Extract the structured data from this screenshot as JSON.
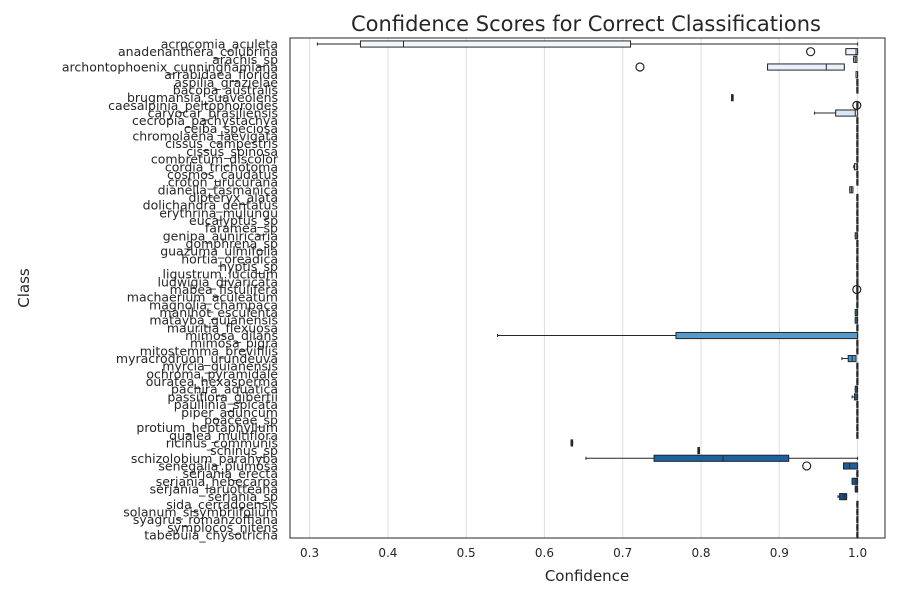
{
  "chart_data": {
    "type": "boxplot",
    "orientation": "horizontal",
    "title": "Confidence Scores for Correct Classifications",
    "xlabel": "Confidence",
    "ylabel": "Class",
    "xlim": [
      0.275,
      1.035
    ],
    "xticks": [
      "0.3",
      "0.4",
      "0.5",
      "0.6",
      "0.7",
      "0.8",
      "0.9",
      "1.0"
    ],
    "grid": "vertical",
    "palette": "Blues",
    "colors": {
      "box_edge": "#262626",
      "grid": "#dddddd",
      "spine": "#262626"
    },
    "classes": [
      {
        "name": "acrocomia_aculeta",
        "q1": 0.365,
        "median": 0.42,
        "q3": 0.71,
        "whisker_low": 0.31,
        "whisker_high": 1.0,
        "outliers": []
      },
      {
        "name": "anadenanthera_colubrina",
        "q1": 0.985,
        "median": 0.998,
        "q3": 1.0,
        "whisker_low": 0.985,
        "whisker_high": 1.0,
        "outliers": [
          0.94
        ]
      },
      {
        "name": "arachis_sp",
        "q1": 0.995,
        "median": 0.997,
        "q3": 0.999,
        "whisker_low": 0.995,
        "whisker_high": 0.999,
        "outliers": []
      },
      {
        "name": "archontophoenix_cunninghamiana",
        "q1": 0.885,
        "median": 0.96,
        "q3": 0.983,
        "whisker_low": 0.885,
        "whisker_high": 0.983,
        "outliers": [
          0.722
        ]
      },
      {
        "name": "arrabidaea_florida",
        "q1": 0.998,
        "median": 1.0,
        "q3": 1.0,
        "whisker_low": 0.998,
        "whisker_high": 1.0,
        "outliers": []
      },
      {
        "name": "aspilia_grazielae",
        "q1": 0.999,
        "median": 1.0,
        "q3": 1.0,
        "whisker_low": 0.999,
        "whisker_high": 1.0,
        "outliers": []
      },
      {
        "name": "bacopa_australis",
        "q1": 0.999,
        "median": 1.0,
        "q3": 1.0,
        "whisker_low": 0.999,
        "whisker_high": 1.0,
        "outliers": []
      },
      {
        "name": "brugmansia_suaveolens",
        "q1": 0.839,
        "median": 0.84,
        "q3": 0.841,
        "whisker_low": 0.839,
        "whisker_high": 0.841,
        "outliers": []
      },
      {
        "name": "caesalpinia_peltophoroides",
        "q1": 0.999,
        "median": 1.0,
        "q3": 1.0,
        "whisker_low": 0.999,
        "whisker_high": 1.0,
        "outliers": [
          0.999
        ]
      },
      {
        "name": "caryocar_brasiliensis",
        "q1": 0.972,
        "median": 0.997,
        "q3": 1.0,
        "whisker_low": 0.945,
        "whisker_high": 1.0,
        "outliers": []
      },
      {
        "name": "cecropia_pachystachya",
        "q1": 0.999,
        "median": 1.0,
        "q3": 1.0,
        "whisker_low": 0.999,
        "whisker_high": 1.0,
        "outliers": []
      },
      {
        "name": "ceiba_speciosa",
        "q1": 0.999,
        "median": 1.0,
        "q3": 1.0,
        "whisker_low": 0.999,
        "whisker_high": 1.0,
        "outliers": []
      },
      {
        "name": "chromolaena_laevigata",
        "q1": 0.999,
        "median": 1.0,
        "q3": 1.0,
        "whisker_low": 0.999,
        "whisker_high": 1.0,
        "outliers": []
      },
      {
        "name": "cissus_campestris",
        "q1": 0.999,
        "median": 1.0,
        "q3": 1.0,
        "whisker_low": 0.999,
        "whisker_high": 1.0,
        "outliers": []
      },
      {
        "name": "cissus_spinosa",
        "q1": 0.999,
        "median": 1.0,
        "q3": 1.0,
        "whisker_low": 0.999,
        "whisker_high": 1.0,
        "outliers": []
      },
      {
        "name": "combretum_discolor",
        "q1": 0.999,
        "median": 1.0,
        "q3": 1.0,
        "whisker_low": 0.999,
        "whisker_high": 1.0,
        "outliers": []
      },
      {
        "name": "cordia_trichotoma",
        "q1": 0.996,
        "median": 0.999,
        "q3": 1.0,
        "whisker_low": 0.995,
        "whisker_high": 1.0,
        "outliers": []
      },
      {
        "name": "cosmos_caudatus",
        "q1": 0.999,
        "median": 1.0,
        "q3": 1.0,
        "whisker_low": 0.999,
        "whisker_high": 1.0,
        "outliers": []
      },
      {
        "name": "croton_urucurana",
        "q1": 0.999,
        "median": 1.0,
        "q3": 1.0,
        "whisker_low": 0.999,
        "whisker_high": 1.0,
        "outliers": []
      },
      {
        "name": "dianella_tasmanica",
        "q1": 0.99,
        "median": 0.992,
        "q3": 0.994,
        "whisker_low": 0.99,
        "whisker_high": 0.994,
        "outliers": []
      },
      {
        "name": "dipteryx_alata",
        "q1": 0.999,
        "median": 1.0,
        "q3": 1.0,
        "whisker_low": 0.999,
        "whisker_high": 1.0,
        "outliers": []
      },
      {
        "name": "dolichandra_dentatus",
        "q1": 0.999,
        "median": 1.0,
        "q3": 1.0,
        "whisker_low": 0.999,
        "whisker_high": 1.0,
        "outliers": []
      },
      {
        "name": "erythrina_mulungu",
        "q1": 0.999,
        "median": 1.0,
        "q3": 1.0,
        "whisker_low": 0.999,
        "whisker_high": 1.0,
        "outliers": []
      },
      {
        "name": "eucalyptus_sp",
        "q1": 0.999,
        "median": 1.0,
        "q3": 1.0,
        "whisker_low": 0.999,
        "whisker_high": 1.0,
        "outliers": []
      },
      {
        "name": "faramea_sp",
        "q1": 0.999,
        "median": 1.0,
        "q3": 1.0,
        "whisker_low": 0.999,
        "whisker_high": 1.0,
        "outliers": []
      },
      {
        "name": "genipa_auniricaria",
        "q1": 0.997,
        "median": 0.999,
        "q3": 1.0,
        "whisker_low": 0.997,
        "whisker_high": 1.0,
        "outliers": []
      },
      {
        "name": "gomphrena_sp",
        "q1": 0.999,
        "median": 1.0,
        "q3": 1.0,
        "whisker_low": 0.999,
        "whisker_high": 1.0,
        "outliers": []
      },
      {
        "name": "guazuma_ulmifolia",
        "q1": 0.999,
        "median": 1.0,
        "q3": 1.0,
        "whisker_low": 0.999,
        "whisker_high": 1.0,
        "outliers": []
      },
      {
        "name": "hortia_oreadica",
        "q1": 0.999,
        "median": 1.0,
        "q3": 1.0,
        "whisker_low": 0.999,
        "whisker_high": 1.0,
        "outliers": []
      },
      {
        "name": "hyptis_sp",
        "q1": 0.999,
        "median": 1.0,
        "q3": 1.0,
        "whisker_low": 0.999,
        "whisker_high": 1.0,
        "outliers": []
      },
      {
        "name": "ligustrum_lucidum",
        "q1": 0.999,
        "median": 1.0,
        "q3": 1.0,
        "whisker_low": 0.999,
        "whisker_high": 1.0,
        "outliers": []
      },
      {
        "name": "ludwigia_divaricata",
        "q1": 0.999,
        "median": 1.0,
        "q3": 1.0,
        "whisker_low": 0.999,
        "whisker_high": 1.0,
        "outliers": []
      },
      {
        "name": "mabea_fistulifera",
        "q1": 0.999,
        "median": 1.0,
        "q3": 1.0,
        "whisker_low": 0.999,
        "whisker_high": 1.0,
        "outliers": [
          0.999
        ]
      },
      {
        "name": "machaerium_aculeatum",
        "q1": 0.999,
        "median": 1.0,
        "q3": 1.0,
        "whisker_low": 0.999,
        "whisker_high": 1.0,
        "outliers": []
      },
      {
        "name": "magnolia_champaca",
        "q1": 0.999,
        "median": 1.0,
        "q3": 1.0,
        "whisker_low": 0.999,
        "whisker_high": 1.0,
        "outliers": []
      },
      {
        "name": "manihot_esculenta",
        "q1": 0.997,
        "median": 0.999,
        "q3": 1.0,
        "whisker_low": 0.997,
        "whisker_high": 1.0,
        "outliers": []
      },
      {
        "name": "matayba_guianensis",
        "q1": 0.997,
        "median": 0.999,
        "q3": 1.0,
        "whisker_low": 0.997,
        "whisker_high": 1.0,
        "outliers": []
      },
      {
        "name": "mauritia_flexuosa",
        "q1": 0.999,
        "median": 1.0,
        "q3": 1.0,
        "whisker_low": 0.999,
        "whisker_high": 1.0,
        "outliers": []
      },
      {
        "name": "mimosa_dilans",
        "q1": 0.768,
        "median": 1.0,
        "q3": 1.0,
        "whisker_low": 0.54,
        "whisker_high": 1.0,
        "outliers": []
      },
      {
        "name": "mimosa_pigra",
        "q1": 0.999,
        "median": 1.0,
        "q3": 1.0,
        "whisker_low": 0.999,
        "whisker_high": 1.0,
        "outliers": []
      },
      {
        "name": "mitostemma_brevifilis",
        "q1": 0.999,
        "median": 1.0,
        "q3": 1.0,
        "whisker_low": 0.999,
        "whisker_high": 1.0,
        "outliers": []
      },
      {
        "name": "myracrodruon_urundeuva",
        "q1": 0.988,
        "median": 0.993,
        "q3": 0.998,
        "whisker_low": 0.98,
        "whisker_high": 0.998,
        "outliers": []
      },
      {
        "name": "myrcia_guianensis",
        "q1": 0.999,
        "median": 1.0,
        "q3": 1.0,
        "whisker_low": 0.999,
        "whisker_high": 1.0,
        "outliers": []
      },
      {
        "name": "ochroma_pyramidale",
        "q1": 0.999,
        "median": 1.0,
        "q3": 1.0,
        "whisker_low": 0.999,
        "whisker_high": 1.0,
        "outliers": []
      },
      {
        "name": "ouratea_hexasperma",
        "q1": 0.999,
        "median": 1.0,
        "q3": 1.0,
        "whisker_low": 0.999,
        "whisker_high": 1.0,
        "outliers": []
      },
      {
        "name": "pachira_aquatica",
        "q1": 0.997,
        "median": 0.999,
        "q3": 1.0,
        "whisker_low": 0.997,
        "whisker_high": 1.0,
        "outliers": []
      },
      {
        "name": "passiflora_gibertii",
        "q1": 0.996,
        "median": 0.998,
        "q3": 1.0,
        "whisker_low": 0.993,
        "whisker_high": 1.0,
        "outliers": []
      },
      {
        "name": "paullinia_spicata",
        "q1": 0.999,
        "median": 1.0,
        "q3": 1.0,
        "whisker_low": 0.999,
        "whisker_high": 1.0,
        "outliers": []
      },
      {
        "name": "piper_aduncum",
        "q1": 0.999,
        "median": 1.0,
        "q3": 1.0,
        "whisker_low": 0.999,
        "whisker_high": 1.0,
        "outliers": []
      },
      {
        "name": "poaceae_sp",
        "q1": 0.999,
        "median": 1.0,
        "q3": 1.0,
        "whisker_low": 0.999,
        "whisker_high": 1.0,
        "outliers": []
      },
      {
        "name": "protium_heptaphyllum",
        "q1": 0.999,
        "median": 1.0,
        "q3": 1.0,
        "whisker_low": 0.999,
        "whisker_high": 1.0,
        "outliers": []
      },
      {
        "name": "qualea_multiflora",
        "q1": 0.999,
        "median": 1.0,
        "q3": 1.0,
        "whisker_low": 0.999,
        "whisker_high": 1.0,
        "outliers": []
      },
      {
        "name": "ricinus_communis",
        "q1": 0.634,
        "median": 0.635,
        "q3": 0.636,
        "whisker_low": 0.634,
        "whisker_high": 0.636,
        "outliers": []
      },
      {
        "name": "schinus_sp",
        "q1": 0.796,
        "median": 0.797,
        "q3": 0.798,
        "whisker_low": 0.796,
        "whisker_high": 0.798,
        "outliers": []
      },
      {
        "name": "schizolobium_parahyba",
        "q1": 0.74,
        "median": 0.828,
        "q3": 0.912,
        "whisker_low": 0.653,
        "whisker_high": 1.0,
        "outliers": []
      },
      {
        "name": "senegalia_plumosa",
        "q1": 0.982,
        "median": 0.99,
        "q3": 1.0,
        "whisker_low": 0.982,
        "whisker_high": 1.0,
        "outliers": [
          0.935
        ]
      },
      {
        "name": "serjania_erecta",
        "q1": 0.999,
        "median": 1.0,
        "q3": 1.0,
        "whisker_low": 0.999,
        "whisker_high": 1.0,
        "outliers": []
      },
      {
        "name": "serjania_hebecarpa",
        "q1": 0.993,
        "median": 0.998,
        "q3": 1.0,
        "whisker_low": 0.993,
        "whisker_high": 1.0,
        "outliers": []
      },
      {
        "name": "serjania_laruotteana",
        "q1": 0.997,
        "median": 0.999,
        "q3": 1.0,
        "whisker_low": 0.997,
        "whisker_high": 1.0,
        "outliers": []
      },
      {
        "name": "serjania_sp",
        "q1": 0.977,
        "median": 0.983,
        "q3": 0.986,
        "whisker_low": 0.975,
        "whisker_high": 0.986,
        "outliers": []
      },
      {
        "name": "sida_cerradoensis",
        "q1": 0.999,
        "median": 1.0,
        "q3": 1.0,
        "whisker_low": 0.999,
        "whisker_high": 1.0,
        "outliers": []
      },
      {
        "name": "solanum_sisymbriifolium",
        "q1": 0.999,
        "median": 1.0,
        "q3": 1.0,
        "whisker_low": 0.999,
        "whisker_high": 1.0,
        "outliers": []
      },
      {
        "name": "syagrus_romanzoffiana",
        "q1": 0.999,
        "median": 1.0,
        "q3": 1.0,
        "whisker_low": 0.999,
        "whisker_high": 1.0,
        "outliers": []
      },
      {
        "name": "symplocos_nitens",
        "q1": 0.999,
        "median": 1.0,
        "q3": 1.0,
        "whisker_low": 0.999,
        "whisker_high": 1.0,
        "outliers": []
      },
      {
        "name": "tabebuia_chysotricha",
        "q1": 0.999,
        "median": 1.0,
        "q3": 1.0,
        "whisker_low": 0.999,
        "whisker_high": 1.0,
        "outliers": []
      }
    ]
  }
}
